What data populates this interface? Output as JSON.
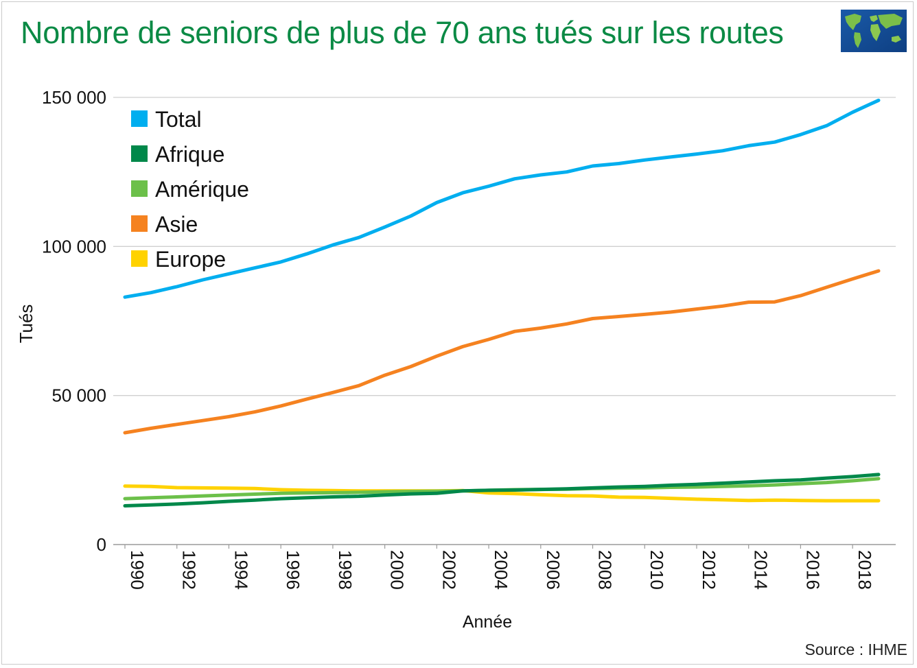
{
  "title": "Nombre de seniors de plus de 70 ans tués sur les routes",
  "source": "Source : IHME",
  "icons": {
    "logo": "world-map-icon"
  },
  "chart_data": {
    "type": "line",
    "title": "Nombre de seniors de plus de 70 ans tués sur les routes",
    "xlabel": "Année",
    "ylabel": "Tués",
    "xlim": [
      1990,
      2019
    ],
    "ylim": [
      0,
      150000
    ],
    "x_ticks": [
      "1990",
      "1992",
      "1994",
      "1996",
      "1998",
      "2000",
      "2002",
      "2004",
      "2006",
      "2008",
      "2010",
      "2012",
      "2014",
      "2016",
      "2018"
    ],
    "y_ticks": [
      {
        "value": 0,
        "label": "0"
      },
      {
        "value": 50000,
        "label": "50 000"
      },
      {
        "value": 100000,
        "label": "100 000"
      },
      {
        "value": 150000,
        "label": "150 000"
      }
    ],
    "grid": true,
    "legend_position": "top-left",
    "x": [
      1990,
      1991,
      1992,
      1993,
      1994,
      1995,
      1996,
      1997,
      1998,
      1999,
      2000,
      2001,
      2002,
      2003,
      2004,
      2005,
      2006,
      2007,
      2008,
      2009,
      2010,
      2011,
      2012,
      2013,
      2014,
      2015,
      2016,
      2017,
      2018,
      2019
    ],
    "series": [
      {
        "name": "Total",
        "color": "#00aeef",
        "values": [
          83000,
          84500,
          86500,
          88800,
          90800,
          92800,
          94800,
          97500,
          100500,
          103000,
          106500,
          110200,
          114700,
          118000,
          120200,
          122700,
          124000,
          125000,
          127000,
          127800,
          129000,
          130000,
          131000,
          132100,
          133800,
          135000,
          137500,
          140500,
          145000,
          149000
        ]
      },
      {
        "name": "Afrique",
        "color": "#00884a",
        "values": [
          13000,
          13300,
          13600,
          14000,
          14500,
          14900,
          15400,
          15700,
          16000,
          16200,
          16600,
          17000,
          17200,
          18000,
          18200,
          18300,
          18500,
          18700,
          19000,
          19300,
          19500,
          19900,
          20200,
          20600,
          21000,
          21400,
          21700,
          22300,
          22800,
          23500
        ]
      },
      {
        "name": "Amérique",
        "color": "#6cc04a",
        "values": [
          15400,
          15700,
          16000,
          16300,
          16600,
          16900,
          17200,
          17300,
          17400,
          17500,
          17700,
          17800,
          17900,
          18000,
          18200,
          18400,
          18500,
          18600,
          18800,
          18900,
          19000,
          19200,
          19300,
          19500,
          19700,
          20000,
          20400,
          20800,
          21400,
          22100
        ]
      },
      {
        "name": "Asie",
        "color": "#f58220",
        "values": [
          37500,
          39000,
          40300,
          41600,
          42900,
          44500,
          46500,
          48800,
          51000,
          53300,
          56800,
          59700,
          63200,
          66400,
          68800,
          71500,
          72600,
          74000,
          75800,
          76500,
          77200,
          78000,
          79000,
          80000,
          81300,
          81400,
          83500,
          86300,
          89100,
          91800
        ]
      },
      {
        "name": "Europe",
        "color": "#ffd200",
        "values": [
          19600,
          19500,
          19100,
          19000,
          18900,
          18800,
          18400,
          18200,
          18100,
          18000,
          18000,
          18000,
          18000,
          18100,
          17300,
          17100,
          16700,
          16400,
          16300,
          15900,
          15800,
          15500,
          15200,
          15000,
          14800,
          14900,
          14800,
          14700,
          14700,
          14700
        ]
      }
    ]
  }
}
